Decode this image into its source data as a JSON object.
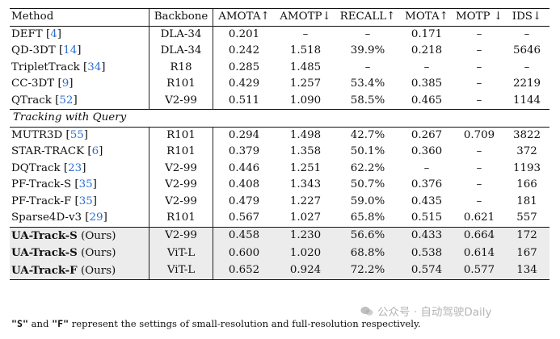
{
  "headers": {
    "method": "Method",
    "backbone": "Backbone",
    "amota": "AMOTA↑",
    "amotp": "AMOTP↓",
    "recall": "RECALL↑",
    "mota": "MOTA↑",
    "motp": "MOTP ↓",
    "ids": "IDS↓"
  },
  "section_title": "Tracking with Query",
  "group1": [
    {
      "name": "DEFT",
      "ref": "4",
      "backbone": "DLA-34",
      "amota": "0.201",
      "amotp": "–",
      "recall": "–",
      "mota": "0.171",
      "motp": "–",
      "ids": "–"
    },
    {
      "name": "QD-3DT",
      "ref": "14",
      "backbone": "DLA-34",
      "amota": "0.242",
      "amotp": "1.518",
      "recall": "39.9%",
      "mota": "0.218",
      "motp": "–",
      "ids": "5646"
    },
    {
      "name": "TripletTrack",
      "ref": "34",
      "backbone": "R18",
      "amota": "0.285",
      "amotp": "1.485",
      "recall": "–",
      "mota": "–",
      "motp": "–",
      "ids": "–"
    },
    {
      "name": "CC-3DT",
      "ref": "9",
      "backbone": "R101",
      "amota": "0.429",
      "amotp": "1.257",
      "recall": "53.4%",
      "mota": "0.385",
      "motp": "–",
      "ids": "2219"
    },
    {
      "name": "QTrack",
      "ref": "52",
      "backbone": "V2-99",
      "amota": "0.511",
      "amotp": "1.090",
      "recall": "58.5%",
      "mota": "0.465",
      "motp": "–",
      "ids": "1144"
    }
  ],
  "group2": [
    {
      "name": "MUTR3D",
      "ref": "55",
      "backbone": "R101",
      "amota": "0.294",
      "amotp": "1.498",
      "recall": "42.7%",
      "mota": "0.267",
      "motp": "0.709",
      "ids": "3822"
    },
    {
      "name": "STAR-TRACK",
      "ref": "6",
      "backbone": "R101",
      "amota": "0.379",
      "amotp": "1.358",
      "recall": "50.1%",
      "mota": "0.360",
      "motp": "–",
      "ids": "372"
    },
    {
      "name": "DQTrack",
      "ref": "23",
      "backbone": "V2-99",
      "amota": "0.446",
      "amotp": "1.251",
      "recall": "62.2%",
      "mota": "–",
      "motp": "–",
      "ids": "1193"
    },
    {
      "name": "PF-Track-S",
      "ref": "35",
      "backbone": "V2-99",
      "amota": "0.408",
      "amotp": "1.343",
      "recall": "50.7%",
      "mota": "0.376",
      "motp": "–",
      "ids": "166"
    },
    {
      "name": "PF-Track-F",
      "ref": "35",
      "backbone": "V2-99",
      "amota": "0.479",
      "amotp": "1.227",
      "recall": "59.0%",
      "mota": "0.435",
      "motp": "–",
      "ids": "181"
    },
    {
      "name": "Sparse4D-v3",
      "ref": "29",
      "backbone": "R101",
      "amota": "0.567",
      "amotp": "1.027",
      "recall": "65.8%",
      "mota": "0.515",
      "motp": "0.621",
      "ids": "557"
    }
  ],
  "ours": [
    {
      "name": "UA-Track-S",
      "suffix": "(Ours)",
      "backbone": "V2-99",
      "amota": "0.458",
      "amotp": "1.230",
      "recall": "56.6%",
      "mota": "0.433",
      "motp": "0.664",
      "ids": "172",
      "best": false
    },
    {
      "name": "UA-Track-S",
      "suffix": "(Ours)",
      "backbone": "ViT-L",
      "amota": "0.600",
      "amotp": "1.020",
      "recall": "68.8%",
      "mota": "0.538",
      "motp": "0.614",
      "ids": "167",
      "best": false
    },
    {
      "name": "UA-Track-F",
      "suffix": "(Ours)",
      "backbone": "ViT-L",
      "amota": "0.652",
      "amotp": "0.924",
      "recall": "72.2%",
      "mota": "0.574",
      "motp": "0.577",
      "ids": "134",
      "best": true
    }
  ],
  "footnote": {
    "s_letter": "\"S\"",
    "and": " and ",
    "f_letter": "\"F\"",
    "rest": " represent the settings of small-resolution and full-resolution respectively."
  },
  "watermark": "公众号 · 自动驾驶Daily"
}
